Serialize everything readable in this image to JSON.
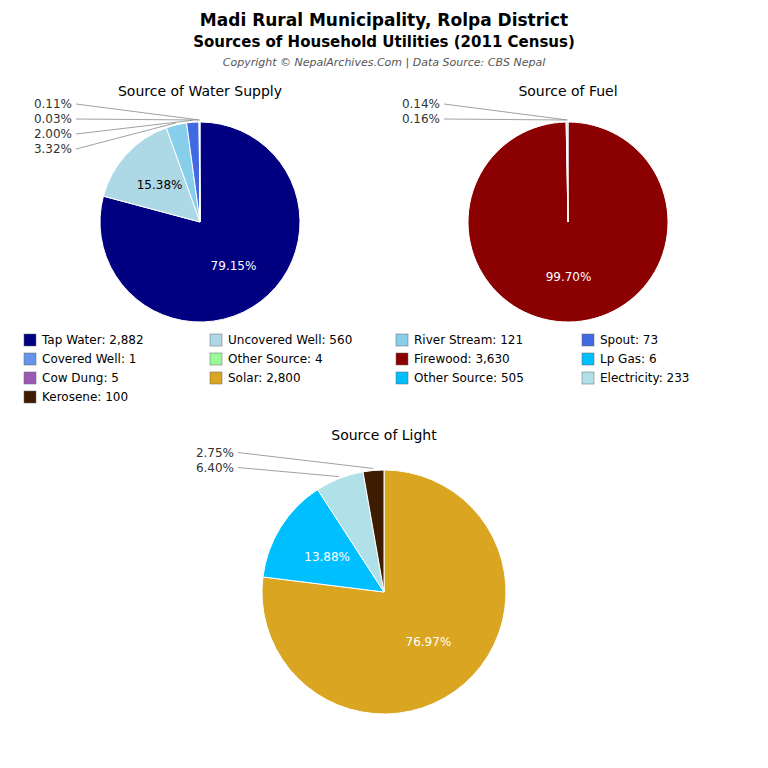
{
  "title": "Madi Rural Municipality, Rolpa District",
  "subtitle": "Sources of Household Utilities (2011 Census)",
  "annotations": [
    "Copyright © NepalArchives.Com | Data Source: CBS Nepal"
  ],
  "chart_data": [
    {
      "type": "pie",
      "title": "Source of Water Supply",
      "categories": [
        "Tap Water: 2,882",
        "Uncovered Well: 560",
        "River Stream: 121",
        "Spout: 73",
        "Covered Well: 1",
        "Other Source: 4"
      ],
      "values": [
        79.15,
        15.38,
        3.32,
        2.0,
        0.03,
        0.11
      ],
      "value_labels": [
        "79.15%",
        "15.38%",
        "3.32%",
        "2.00%",
        "0.03%",
        "0.11%"
      ],
      "colors": [
        "#000080",
        "#add8e6",
        "#87ceeb",
        "#4169e1",
        "#6495ed",
        "#98fb98"
      ],
      "data_labels": true,
      "legend": "bottom"
    },
    {
      "type": "pie",
      "title": "Source of Fuel",
      "categories": [
        "Firewood: 3,630",
        "Lp Gas: 6",
        "Cow Dung: 5"
      ],
      "values": [
        99.7,
        0.16,
        0.14
      ],
      "value_labels": [
        "99.70%",
        "0.16%",
        "0.14%"
      ],
      "colors": [
        "#8b0000",
        "#00bfff",
        "#9b59b6"
      ],
      "data_labels": true,
      "legend": "bottom"
    },
    {
      "type": "pie",
      "title": "Source of Light",
      "categories": [
        "Solar: 2,800",
        "Other Source: 505",
        "Electricity: 233",
        "Kerosene: 100"
      ],
      "values": [
        76.97,
        13.88,
        6.4,
        2.75
      ],
      "value_labels": [
        "76.97%",
        "13.88%",
        "6.40%",
        "2.75%"
      ],
      "colors": [
        "#DAA520",
        "#00bfff",
        "#b0e0e8",
        "#3d1c02"
      ],
      "data_labels": true,
      "legend": "top"
    }
  ]
}
